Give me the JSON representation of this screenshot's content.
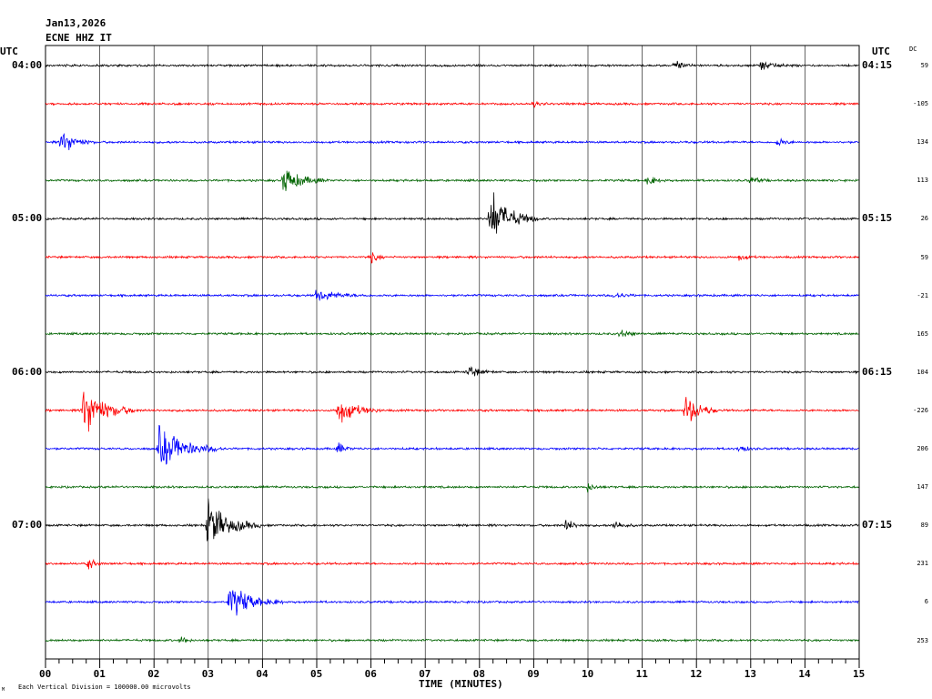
{
  "header": {
    "date": "Jan13,2026",
    "station": "ECNE HHZ IT",
    "utc_left": "UTC",
    "utc_right": "UTC",
    "dc_label": "DC"
  },
  "footer": {
    "scale_note": "Each Vertical Division = 100000.00 microvolts",
    "mark": "M"
  },
  "chart_data": {
    "type": "line",
    "title": "",
    "xlabel": "TIME (MINUTES)",
    "ylabel": "",
    "x_range_minutes": [
      0,
      15
    ],
    "x_ticks": [
      "00",
      "01",
      "02",
      "03",
      "04",
      "05",
      "06",
      "07",
      "08",
      "09",
      "10",
      "11",
      "12",
      "13",
      "14",
      "15"
    ],
    "grid": true,
    "trace_colors": [
      "#000000",
      "#ff0000",
      "#0000ff",
      "#006400"
    ],
    "left_time_labels": [
      "04:00",
      "",
      "",
      "",
      "05:00",
      "",
      "",
      "",
      "06:00",
      "",
      "",
      "",
      "07:00",
      "",
      "",
      ""
    ],
    "right_time_labels": [
      "04:15",
      "",
      "",
      "",
      "05:15",
      "",
      "",
      "",
      "06:15",
      "",
      "",
      "",
      "07:15",
      "",
      "",
      ""
    ],
    "dc_values": [
      "59",
      "-105",
      "134",
      "113",
      "26",
      "59",
      "-21",
      "165",
      "104",
      "-226",
      "206",
      "147",
      "89",
      "231",
      "6",
      "253"
    ],
    "events": [
      {
        "row": 0,
        "minute": 11.6,
        "amp": 0.5,
        "dur": 0.4
      },
      {
        "row": 0,
        "minute": 13.2,
        "amp": 0.6,
        "dur": 0.5
      },
      {
        "row": 1,
        "minute": 9.0,
        "amp": 0.3,
        "dur": 0.3
      },
      {
        "row": 2,
        "minute": 0.3,
        "amp": 1.4,
        "dur": 0.6
      },
      {
        "row": 2,
        "minute": 13.5,
        "amp": 0.5,
        "dur": 0.3
      },
      {
        "row": 3,
        "minute": 4.4,
        "amp": 1.5,
        "dur": 0.8
      },
      {
        "row": 3,
        "minute": 11.1,
        "amp": 0.5,
        "dur": 0.4
      },
      {
        "row": 3,
        "minute": 13.0,
        "amp": 0.4,
        "dur": 0.4
      },
      {
        "row": 4,
        "minute": 8.2,
        "amp": 3.0,
        "dur": 0.9
      },
      {
        "row": 5,
        "minute": 6.0,
        "amp": 0.6,
        "dur": 0.3
      },
      {
        "row": 5,
        "minute": 12.8,
        "amp": 0.4,
        "dur": 0.3
      },
      {
        "row": 6,
        "minute": 5.0,
        "amp": 0.6,
        "dur": 1.0
      },
      {
        "row": 6,
        "minute": 10.5,
        "amp": 0.4,
        "dur": 0.4
      },
      {
        "row": 7,
        "minute": 10.6,
        "amp": 0.5,
        "dur": 0.4
      },
      {
        "row": 8,
        "minute": 7.8,
        "amp": 0.7,
        "dur": 0.5
      },
      {
        "row": 9,
        "minute": 0.7,
        "amp": 2.8,
        "dur": 1.0
      },
      {
        "row": 9,
        "minute": 5.4,
        "amp": 1.6,
        "dur": 0.8
      },
      {
        "row": 9,
        "minute": 11.8,
        "amp": 1.9,
        "dur": 0.6
      },
      {
        "row": 10,
        "minute": 2.1,
        "amp": 2.3,
        "dur": 1.2
      },
      {
        "row": 10,
        "minute": 5.4,
        "amp": 0.6,
        "dur": 0.3
      },
      {
        "row": 10,
        "minute": 12.8,
        "amp": 0.5,
        "dur": 0.3
      },
      {
        "row": 11,
        "minute": 10.0,
        "amp": 0.5,
        "dur": 0.3
      },
      {
        "row": 12,
        "minute": 3.0,
        "amp": 2.6,
        "dur": 1.0
      },
      {
        "row": 12,
        "minute": 9.6,
        "amp": 0.6,
        "dur": 0.4
      },
      {
        "row": 12,
        "minute": 10.5,
        "amp": 0.5,
        "dur": 0.4
      },
      {
        "row": 13,
        "minute": 0.8,
        "amp": 0.6,
        "dur": 0.3
      },
      {
        "row": 14,
        "minute": 3.4,
        "amp": 1.9,
        "dur": 1.0
      },
      {
        "row": 15,
        "minute": 2.5,
        "amp": 0.6,
        "dur": 0.2
      }
    ]
  }
}
